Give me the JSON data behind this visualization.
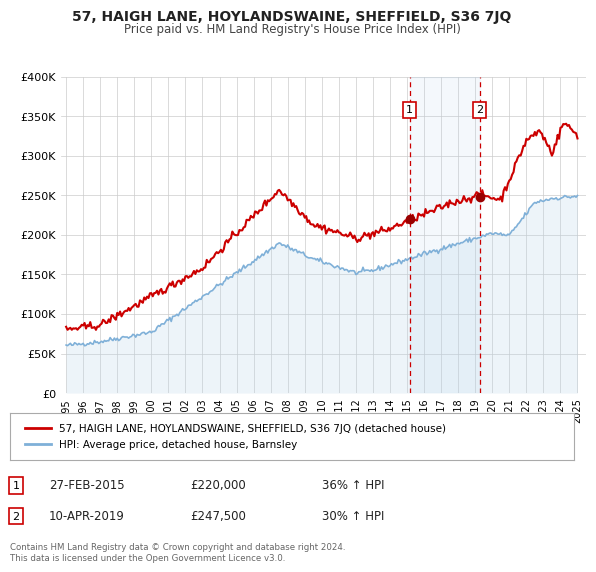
{
  "title": "57, HAIGH LANE, HOYLANDSWAINE, SHEFFIELD, S36 7JQ",
  "subtitle": "Price paid vs. HM Land Registry's House Price Index (HPI)",
  "ylim": [
    0,
    400000
  ],
  "yticks": [
    0,
    50000,
    100000,
    150000,
    200000,
    250000,
    300000,
    350000,
    400000
  ],
  "ytick_labels": [
    "£0",
    "£50K",
    "£100K",
    "£150K",
    "£200K",
    "£250K",
    "£300K",
    "£350K",
    "£400K"
  ],
  "xlim_start": 1994.7,
  "xlim_end": 2025.5,
  "xticks": [
    1995,
    1996,
    1997,
    1998,
    1999,
    2000,
    2001,
    2002,
    2003,
    2004,
    2005,
    2006,
    2007,
    2008,
    2009,
    2010,
    2011,
    2012,
    2013,
    2014,
    2015,
    2016,
    2017,
    2018,
    2019,
    2020,
    2021,
    2022,
    2023,
    2024,
    2025
  ],
  "property_color": "#cc0000",
  "hpi_color": "#7fb0d8",
  "hpi_fill_alpha": 0.25,
  "hpi_fill_color": "#b8d4e8",
  "marker_color": "#990000",
  "sale1_x": 2015.15,
  "sale1_y": 220000,
  "sale2_x": 2019.27,
  "sale2_y": 247500,
  "vline_color": "#cc0000",
  "legend_label_property": "57, HAIGH LANE, HOYLANDSWAINE, SHEFFIELD, S36 7JQ (detached house)",
  "legend_label_hpi": "HPI: Average price, detached house, Barnsley",
  "annotation1_date": "27-FEB-2015",
  "annotation1_price": "£220,000",
  "annotation1_hpi": "36% ↑ HPI",
  "annotation2_date": "10-APR-2019",
  "annotation2_price": "£247,500",
  "annotation2_hpi": "30% ↑ HPI",
  "footer": "Contains HM Land Registry data © Crown copyright and database right 2024.\nThis data is licensed under the Open Government Licence v3.0.",
  "background_color": "#ffffff",
  "grid_color": "#cccccc"
}
